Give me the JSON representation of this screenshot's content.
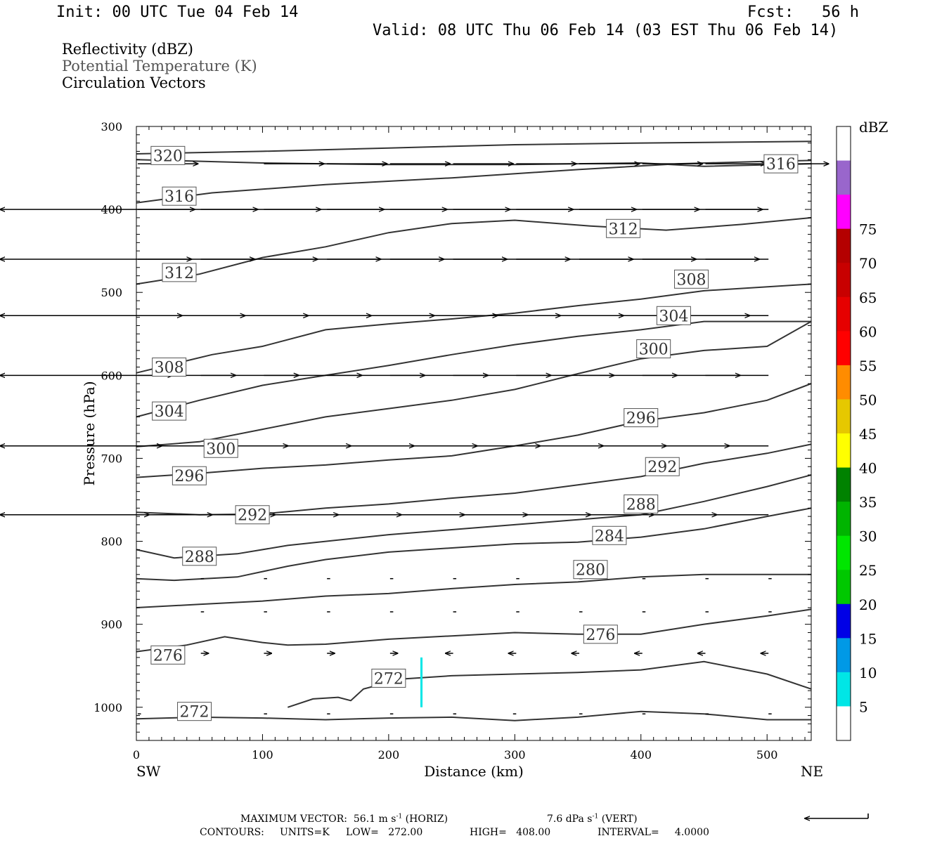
{
  "header": {
    "init": "Init: 00 UTC Tue 04 Feb 14",
    "fcst": "Fcst:   56 h",
    "valid": "Valid: 08 UTC Thu 06 Feb 14 (03 EST Thu 06 Feb 14)"
  },
  "legend": {
    "field1": "Reflectivity (dBZ)",
    "field2": "Potential Temperature (K)",
    "field3": "Circulation Vectors"
  },
  "footer": {
    "max_label": "MAXIMUM VECTOR:",
    "horiz_val": "56.1",
    "horiz_unit_a": "m s",
    "horiz_sup": "-1",
    "horiz_tag": "(HORIZ)",
    "vert_val": "7.6",
    "vert_unit_a": "dPa s",
    "vert_sup": "-1",
    "vert_tag": "(VERT)",
    "contours_label": "CONTOURS:",
    "units": "UNITS=K",
    "low": "LOW=   272.00",
    "high": "HIGH=   408.00",
    "interval": "INTERVAL=     4.0000"
  },
  "chart_data": {
    "type": "cross-section",
    "xlabel": "Distance (km)",
    "ylabel": "Pressure (hPa)",
    "xlim": [
      0,
      535
    ],
    "ylim": [
      1040,
      300
    ],
    "x_ticks": [
      0,
      100,
      200,
      300,
      400,
      500
    ],
    "y_ticks": [
      300,
      400,
      500,
      600,
      700,
      800,
      900,
      1000
    ],
    "left_end": "SW",
    "right_end": "NE",
    "colorbar": {
      "title": "dBZ",
      "labels": [
        "5",
        "10",
        "15",
        "20",
        "25",
        "30",
        "35",
        "40",
        "45",
        "50",
        "55",
        "60",
        "65",
        "70",
        "75"
      ],
      "colors": [
        "#ffffff",
        "#00e6e6",
        "#0099e6",
        "#0000e6",
        "#00c800",
        "#00e600",
        "#00b400",
        "#008200",
        "#ffff00",
        "#e6c800",
        "#ff8c00",
        "#ff0000",
        "#e60000",
        "#c80000",
        "#b40000",
        "#ff00ff",
        "#9966cc",
        "#ffffff"
      ]
    },
    "theta_contours": [
      {
        "value": 320,
        "label": "320",
        "label_at": [
          25,
          335
        ],
        "points": [
          [
            0,
            333
          ],
          [
            100,
            330
          ],
          [
            200,
            326
          ],
          [
            300,
            322
          ],
          [
            400,
            320
          ],
          [
            535,
            318
          ]
        ]
      },
      {
        "value": 316,
        "label": "316",
        "label_at": [
          34,
          384
        ],
        "points": [
          [
            0,
            392
          ],
          [
            60,
            380
          ],
          [
            150,
            370
          ],
          [
            250,
            362
          ],
          [
            350,
            352
          ],
          [
            430,
            345
          ],
          [
            500,
            342
          ],
          [
            535,
            341
          ]
        ]
      },
      {
        "value": 316,
        "label": "316",
        "label_at": [
          511,
          345
        ],
        "points": [
          [
            0,
            340
          ],
          [
            100,
            344
          ],
          [
            200,
            346
          ],
          [
            300,
            346
          ],
          [
            400,
            344
          ],
          [
            450,
            348
          ],
          [
            535,
            345
          ]
        ]
      },
      {
        "value": 312,
        "label": "312",
        "label_at": [
          386,
          423
        ],
        "points": [
          [
            0,
            490
          ],
          [
            50,
            478
          ],
          [
            100,
            458
          ],
          [
            150,
            445
          ],
          [
            200,
            428
          ],
          [
            250,
            417
          ],
          [
            300,
            413
          ],
          [
            360,
            420
          ],
          [
            420,
            425
          ],
          [
            480,
            418
          ],
          [
            535,
            410
          ]
        ]
      },
      {
        "value": 312,
        "label": "312",
        "label_at": [
          34,
          476
        ],
        "points": [
          [
            0,
            490
          ]
        ]
      },
      {
        "value": 308,
        "label": "308",
        "label_at": [
          440,
          484
        ],
        "points": [
          [
            0,
            597
          ],
          [
            60,
            575
          ],
          [
            100,
            565
          ],
          [
            150,
            545
          ],
          [
            200,
            538
          ],
          [
            250,
            532
          ],
          [
            300,
            525
          ],
          [
            350,
            516
          ],
          [
            400,
            508
          ],
          [
            450,
            498
          ],
          [
            535,
            490
          ]
        ]
      },
      {
        "value": 308,
        "label": "308",
        "label_at": [
          26,
          590
        ],
        "points": [
          [
            0,
            597
          ]
        ]
      },
      {
        "value": 304,
        "label": "304",
        "label_at": [
          426,
          528
        ],
        "points": [
          [
            0,
            650
          ],
          [
            50,
            630
          ],
          [
            100,
            612
          ],
          [
            150,
            600
          ],
          [
            200,
            588
          ],
          [
            250,
            575
          ],
          [
            300,
            563
          ],
          [
            350,
            553
          ],
          [
            400,
            545
          ],
          [
            450,
            535
          ],
          [
            535,
            535
          ]
        ]
      },
      {
        "value": 304,
        "label": "304",
        "label_at": [
          26,
          643
        ],
        "points": [
          [
            0,
            650
          ]
        ]
      },
      {
        "value": 300,
        "label": "300",
        "label_at": [
          410,
          568
        ],
        "points": [
          [
            0,
            686
          ],
          [
            50,
            680
          ],
          [
            100,
            665
          ],
          [
            150,
            650
          ],
          [
            200,
            640
          ],
          [
            250,
            630
          ],
          [
            300,
            617
          ],
          [
            350,
            598
          ],
          [
            400,
            580
          ],
          [
            450,
            570
          ],
          [
            500,
            565
          ],
          [
            535,
            535
          ]
        ]
      },
      {
        "value": 300,
        "label": "300",
        "label_at": [
          67,
          688
        ],
        "points": [
          [
            0,
            686
          ]
        ]
      },
      {
        "value": 296,
        "label": "296",
        "label_at": [
          400,
          651
        ],
        "points": [
          [
            0,
            723
          ],
          [
            50,
            718
          ],
          [
            100,
            712
          ],
          [
            150,
            708
          ],
          [
            200,
            702
          ],
          [
            250,
            697
          ],
          [
            300,
            685
          ],
          [
            350,
            672
          ],
          [
            400,
            655
          ],
          [
            450,
            645
          ],
          [
            500,
            630
          ],
          [
            535,
            610
          ]
        ]
      },
      {
        "value": 296,
        "label": "296",
        "label_at": [
          42,
          721
        ],
        "points": [
          [
            0,
            723
          ]
        ]
      },
      {
        "value": 292,
        "label": "292",
        "label_at": [
          417,
          710
        ],
        "points": [
          [
            0,
            765
          ],
          [
            50,
            768
          ],
          [
            100,
            767
          ],
          [
            150,
            760
          ],
          [
            200,
            755
          ],
          [
            250,
            748
          ],
          [
            300,
            742
          ],
          [
            350,
            732
          ],
          [
            400,
            722
          ],
          [
            450,
            706
          ],
          [
            500,
            694
          ],
          [
            535,
            683
          ]
        ]
      },
      {
        "value": 292,
        "label": "292",
        "label_at": [
          92,
          768
        ],
        "points": [
          [
            0,
            765
          ]
        ]
      },
      {
        "value": 288,
        "label": "288",
        "label_at": [
          400,
          755
        ],
        "points": [
          [
            0,
            810
          ],
          [
            30,
            820
          ],
          [
            80,
            815
          ],
          [
            120,
            805
          ],
          [
            200,
            792
          ],
          [
            250,
            786
          ],
          [
            300,
            780
          ],
          [
            350,
            774
          ],
          [
            400,
            768
          ],
          [
            450,
            752
          ],
          [
            500,
            734
          ],
          [
            535,
            720
          ]
        ]
      },
      {
        "value": 288,
        "label": "288",
        "label_at": [
          50,
          818
        ],
        "points": [
          [
            0,
            810
          ]
        ]
      },
      {
        "value": 284,
        "label": "284",
        "label_at": [
          375,
          793
        ],
        "points": [
          [
            0,
            845
          ],
          [
            30,
            847
          ],
          [
            80,
            843
          ],
          [
            120,
            830
          ],
          [
            150,
            822
          ],
          [
            200,
            813
          ],
          [
            250,
            808
          ],
          [
            300,
            803
          ],
          [
            350,
            801
          ],
          [
            400,
            795
          ],
          [
            450,
            785
          ],
          [
            500,
            770
          ],
          [
            535,
            760
          ]
        ]
      },
      {
        "value": 280,
        "label": "280",
        "label_at": [
          360,
          834
        ],
        "points": [
          [
            0,
            880
          ],
          [
            50,
            876
          ],
          [
            100,
            872
          ],
          [
            150,
            866
          ],
          [
            200,
            863
          ],
          [
            250,
            857
          ],
          [
            300,
            852
          ],
          [
            350,
            849
          ],
          [
            400,
            843
          ],
          [
            450,
            840
          ],
          [
            535,
            840
          ]
        ]
      },
      {
        "value": 276,
        "label": "276",
        "label_at": [
          368,
          912
        ],
        "points": [
          [
            0,
            933
          ],
          [
            40,
            925
          ],
          [
            70,
            915
          ],
          [
            100,
            922
          ],
          [
            120,
            925
          ],
          [
            150,
            924
          ],
          [
            200,
            918
          ],
          [
            250,
            914
          ],
          [
            300,
            910
          ],
          [
            350,
            912
          ],
          [
            400,
            912
          ],
          [
            450,
            900
          ],
          [
            500,
            890
          ],
          [
            535,
            882
          ]
        ]
      },
      {
        "value": 276,
        "label": "276",
        "label_at": [
          25,
          937
        ],
        "points": [
          [
            0,
            933
          ]
        ]
      },
      {
        "value": 272,
        "label": "272",
        "label_at": [
          200,
          965
        ],
        "points": [
          [
            120,
            1000
          ],
          [
            140,
            990
          ],
          [
            160,
            988
          ],
          [
            170,
            992
          ],
          [
            180,
            978
          ],
          [
            210,
            966
          ],
          [
            250,
            962
          ],
          [
            300,
            960
          ],
          [
            350,
            958
          ],
          [
            400,
            955
          ],
          [
            450,
            945
          ],
          [
            500,
            960
          ],
          [
            535,
            978
          ]
        ]
      },
      {
        "value": 272,
        "label": "272",
        "label_at": [
          46,
          1005
        ],
        "points": [
          [
            0,
            1014
          ],
          [
            50,
            1012
          ],
          [
            100,
            1013
          ],
          [
            150,
            1015
          ],
          [
            200,
            1013
          ],
          [
            250,
            1012
          ],
          [
            300,
            1016
          ],
          [
            350,
            1012
          ],
          [
            400,
            1005
          ],
          [
            450,
            1008
          ],
          [
            500,
            1015
          ],
          [
            535,
            1015
          ]
        ]
      }
    ],
    "reflectivity_features": [
      {
        "x": 226,
        "p_top": 940,
        "p_bottom": 1000,
        "dbz": "5-10"
      }
    ],
    "vectors": [
      {
        "p": 345,
        "x": [
          0,
          100,
          150,
          200,
          250,
          300,
          350,
          400,
          450,
          500
        ],
        "u": [
          1,
          1,
          1,
          1,
          1,
          1,
          1,
          1,
          1,
          1
        ],
        "len": 0.95
      },
      {
        "p": 400,
        "x": [
          0,
          50,
          100,
          150,
          200,
          250,
          300,
          350,
          400,
          450,
          500
        ],
        "u": [
          1,
          1,
          1,
          1,
          1,
          1,
          1,
          1,
          1,
          1
        ],
        "len": 0.9
      },
      {
        "p": 460,
        "x": [
          0,
          50,
          100,
          150,
          200,
          250,
          300,
          350,
          400,
          450,
          500
        ],
        "u": [
          1,
          1,
          1,
          1,
          1,
          1,
          1,
          1,
          1,
          1
        ],
        "len": 0.85
      },
      {
        "p": 528,
        "x": [
          0,
          50,
          100,
          150,
          200,
          250,
          300,
          350,
          400,
          450,
          500
        ],
        "u": [
          1,
          1,
          1,
          1,
          1,
          1,
          1,
          1,
          1,
          1
        ],
        "len": 0.7
      },
      {
        "p": 600,
        "x": [
          0,
          50,
          100,
          150,
          200,
          250,
          300,
          350,
          400,
          450,
          500
        ],
        "u": [
          1,
          1,
          1,
          1,
          1,
          1,
          1,
          1,
          1,
          1
        ],
        "len": 0.55
      },
      {
        "p": 685,
        "x": [
          0,
          50,
          100,
          150,
          200,
          250,
          300,
          350,
          400,
          450,
          500
        ],
        "u": [
          1,
          1,
          1,
          1,
          1,
          1,
          1,
          1,
          1,
          1
        ],
        "len": 0.38
      },
      {
        "p": 768,
        "x": [
          0,
          50,
          100,
          150,
          200,
          250,
          300,
          350,
          400,
          450,
          500
        ],
        "u": [
          1,
          1,
          1,
          1,
          1,
          1,
          1,
          1,
          1,
          1
        ],
        "len": 0.18
      },
      {
        "p": 845,
        "x": [
          50,
          100,
          150,
          200,
          250,
          300,
          350,
          400,
          450,
          500
        ],
        "u": [
          1,
          1,
          1,
          1,
          1,
          1,
          1,
          1,
          1,
          1
        ],
        "len": 0.05
      },
      {
        "p": 885,
        "x": [
          50,
          100,
          150,
          200,
          250,
          300,
          350,
          400,
          450,
          500
        ],
        "u": [
          1,
          1,
          1,
          1,
          1,
          1,
          1,
          1,
          1,
          1
        ],
        "len": 0.05
      },
      {
        "p": 935,
        "x": [
          50,
          100,
          150,
          200,
          250,
          300,
          350,
          400,
          450,
          500
        ],
        "u": [
          1,
          1,
          1,
          1,
          -1,
          -1,
          -1,
          -1,
          -1,
          -1
        ],
        "len": 0.12
      },
      {
        "p": 1008,
        "x": [
          0,
          100,
          150,
          200,
          250,
          300,
          350,
          400,
          450,
          500
        ],
        "u": [
          1,
          1,
          1,
          1,
          1,
          -1,
          1,
          1,
          1,
          1
        ],
        "len": 0.05
      }
    ],
    "reference_vector": {
      "direction": "left"
    }
  }
}
